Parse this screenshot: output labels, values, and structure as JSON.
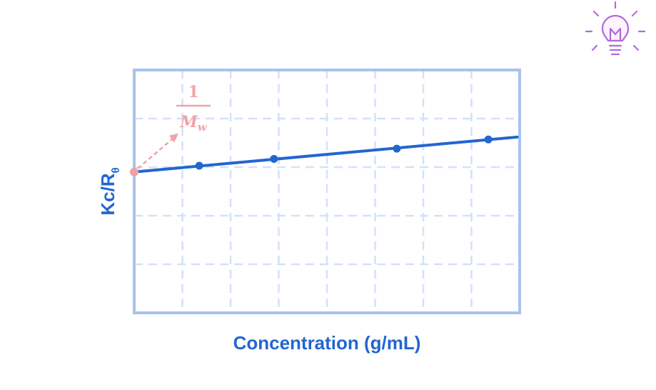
{
  "chart_data": {
    "type": "line",
    "xlabel": "Concentration (g/mL)",
    "ylabel": {
      "main": "Kc/R",
      "subscript": "θ"
    },
    "grid": true,
    "xlim": [
      0,
      8
    ],
    "ylim": [
      0,
      5
    ],
    "series": [
      {
        "x": [
          1.35,
          2.9,
          5.45,
          7.35
        ],
        "y": [
          3.03,
          3.17,
          3.38,
          3.57
        ],
        "line_x": [
          0,
          7.95
        ],
        "line_y": [
          2.9,
          3.62
        ],
        "color": "#2266d0"
      }
    ],
    "intercept": {
      "x": 0,
      "y": 2.9,
      "color": "#f0a0a8"
    },
    "annotation": {
      "numerator": "1",
      "denominator": "M",
      "denominator_subscript": "w",
      "color": "#f2a3aa"
    },
    "frame_color": "#a7c2ee",
    "grid_color": "#d3e1f8"
  },
  "icons": {
    "corner": "lightbulb-icon",
    "corner_color": "#b569d8"
  }
}
